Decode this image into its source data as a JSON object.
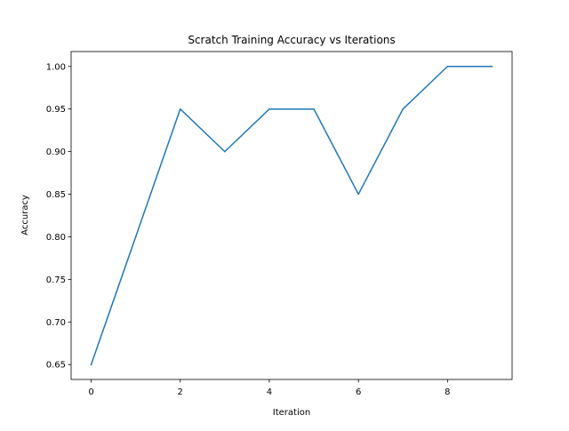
{
  "chart_data": {
    "type": "line",
    "title": "Scratch Training Accuracy vs Iterations",
    "xlabel": "Iteration",
    "ylabel": "Accuracy",
    "x": [
      0,
      1,
      2,
      3,
      4,
      5,
      6,
      7,
      8,
      9
    ],
    "series": [
      {
        "values": [
          0.65,
          0.8,
          0.95,
          0.9,
          0.95,
          0.95,
          0.85,
          0.95,
          1.0,
          1.0
        ],
        "color": "#1f77b4"
      }
    ],
    "xlim": [
      -0.45,
      9.45
    ],
    "ylim": [
      0.6325,
      1.0175
    ],
    "xticks": [
      0,
      2,
      4,
      6,
      8
    ],
    "xtick_labels": [
      "0",
      "2",
      "4",
      "6",
      "8"
    ],
    "yticks": [
      0.65,
      0.7,
      0.75,
      0.8,
      0.85,
      0.9,
      0.95,
      1.0
    ],
    "ytick_labels": [
      "0.65",
      "0.70",
      "0.75",
      "0.80",
      "0.85",
      "0.90",
      "0.95",
      "1.00"
    ],
    "grid": false,
    "legend": false
  }
}
